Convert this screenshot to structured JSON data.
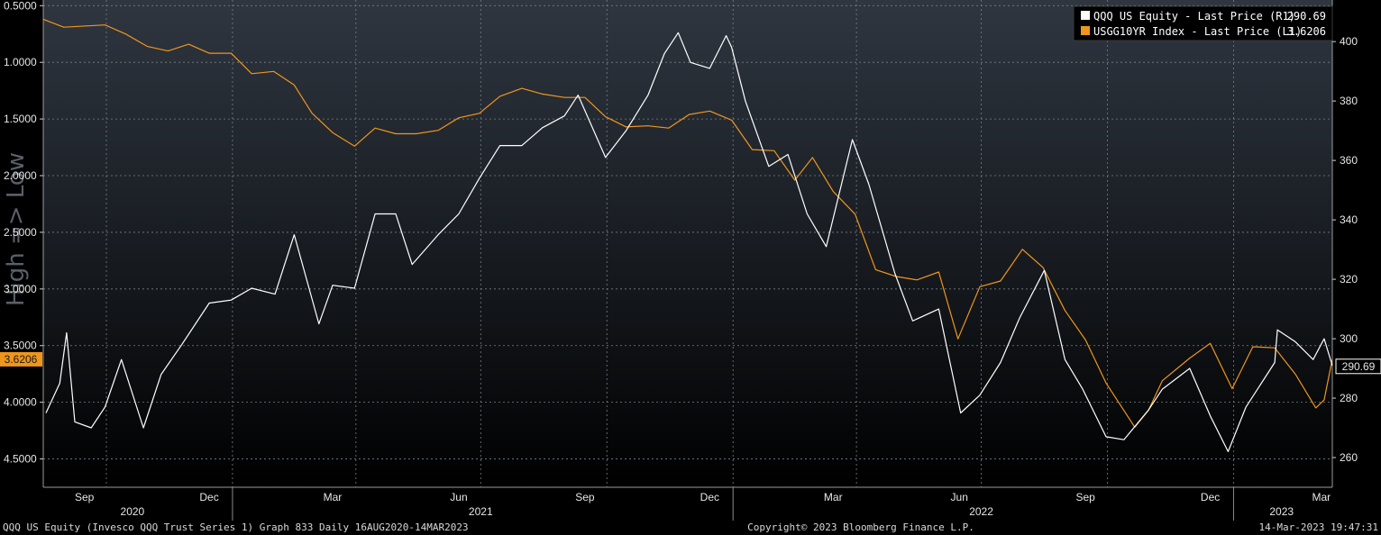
{
  "chart_data": {
    "type": "line",
    "background_label": "High => Low",
    "x_range": [
      "2020-08-16",
      "2023-03-14"
    ],
    "left_axis": {
      "ticks": [
        "0.5000",
        "1.0000",
        "1.5000",
        "2.0000",
        "2.5000",
        "3.0000",
        "3.5000",
        "4.0000",
        "4.5000"
      ],
      "range": [
        0.45,
        4.75
      ],
      "inverted": true
    },
    "right_axis": {
      "ticks": [
        "400",
        "380",
        "360",
        "340",
        "320",
        "300",
        "280",
        "260"
      ],
      "range": [
        250,
        414
      ]
    },
    "month_ticks": [
      "Sep",
      "Dec",
      "Mar",
      "Jun",
      "Sep",
      "Dec",
      "Mar",
      "Jun",
      "Sep",
      "Dec",
      "Mar"
    ],
    "year_labels": [
      "2020",
      "2021",
      "2022",
      "2023"
    ],
    "grid": true,
    "legend_position": "top-right",
    "series": [
      {
        "name": "QQQ US Equity - Last Price (R1)",
        "last_value": "290.69",
        "color": "#ffffff",
        "axis": "right",
        "points": [
          [
            "2020-08-18",
            275
          ],
          [
            "2020-08-28",
            285
          ],
          [
            "2020-09-02",
            302
          ],
          [
            "2020-09-08",
            272
          ],
          [
            "2020-09-20",
            270
          ],
          [
            "2020-09-30",
            277
          ],
          [
            "2020-10-12",
            293
          ],
          [
            "2020-10-28",
            270
          ],
          [
            "2020-11-10",
            288
          ],
          [
            "2020-11-25",
            298
          ],
          [
            "2020-12-15",
            312
          ],
          [
            "2020-12-31",
            313
          ],
          [
            "2021-01-15",
            317
          ],
          [
            "2021-02-01",
            315
          ],
          [
            "2021-02-15",
            335
          ],
          [
            "2021-03-05",
            305
          ],
          [
            "2021-03-15",
            318
          ],
          [
            "2021-03-31",
            317
          ],
          [
            "2021-04-15",
            342
          ],
          [
            "2021-04-30",
            342
          ],
          [
            "2021-05-12",
            325
          ],
          [
            "2021-05-31",
            335
          ],
          [
            "2021-06-15",
            342
          ],
          [
            "2021-06-30",
            354
          ],
          [
            "2021-07-15",
            365
          ],
          [
            "2021-07-31",
            365
          ],
          [
            "2021-08-15",
            371
          ],
          [
            "2021-08-31",
            375
          ],
          [
            "2021-09-10",
            382
          ],
          [
            "2021-09-30",
            361
          ],
          [
            "2021-10-15",
            370
          ],
          [
            "2021-10-31",
            382
          ],
          [
            "2021-11-12",
            396
          ],
          [
            "2021-11-22",
            403
          ],
          [
            "2021-12-01",
            393
          ],
          [
            "2021-12-15",
            391
          ],
          [
            "2021-12-27",
            402
          ],
          [
            "2021-12-31",
            398
          ],
          [
            "2022-01-10",
            380
          ],
          [
            "2022-01-27",
            358
          ],
          [
            "2022-02-10",
            362
          ],
          [
            "2022-02-24",
            342
          ],
          [
            "2022-03-10",
            331
          ],
          [
            "2022-03-29",
            367
          ],
          [
            "2022-04-10",
            352
          ],
          [
            "2022-04-29",
            322
          ],
          [
            "2022-05-12",
            306
          ],
          [
            "2022-05-31",
            310
          ],
          [
            "2022-06-16",
            275
          ],
          [
            "2022-06-30",
            281
          ],
          [
            "2022-07-15",
            292
          ],
          [
            "2022-07-29",
            307
          ],
          [
            "2022-08-16",
            323
          ],
          [
            "2022-08-31",
            293
          ],
          [
            "2022-09-13",
            283
          ],
          [
            "2022-09-30",
            267
          ],
          [
            "2022-10-13",
            266
          ],
          [
            "2022-10-31",
            276
          ],
          [
            "2022-11-10",
            283
          ],
          [
            "2022-11-30",
            290
          ],
          [
            "2022-12-15",
            274
          ],
          [
            "2022-12-28",
            262
          ],
          [
            "2023-01-10",
            277
          ],
          [
            "2023-01-31",
            292
          ],
          [
            "2023-02-02",
            303
          ],
          [
            "2023-02-15",
            299
          ],
          [
            "2023-02-28",
            293
          ],
          [
            "2023-03-08",
            300
          ],
          [
            "2023-03-14",
            291
          ]
        ]
      },
      {
        "name": "USGG10YR Index - Last Price (L1)",
        "last_value": "3.6206",
        "color": "#f0961c",
        "axis": "left",
        "points": [
          [
            "2020-08-16",
            0.62
          ],
          [
            "2020-08-31",
            0.69
          ],
          [
            "2020-09-30",
            0.67
          ],
          [
            "2020-10-15",
            0.75
          ],
          [
            "2020-10-31",
            0.86
          ],
          [
            "2020-11-15",
            0.9
          ],
          [
            "2020-11-30",
            0.84
          ],
          [
            "2020-12-15",
            0.92
          ],
          [
            "2020-12-31",
            0.92
          ],
          [
            "2021-01-15",
            1.1
          ],
          [
            "2021-01-31",
            1.08
          ],
          [
            "2021-02-15",
            1.2
          ],
          [
            "2021-02-28",
            1.45
          ],
          [
            "2021-03-15",
            1.62
          ],
          [
            "2021-03-31",
            1.74
          ],
          [
            "2021-04-15",
            1.58
          ],
          [
            "2021-04-30",
            1.63
          ],
          [
            "2021-05-15",
            1.63
          ],
          [
            "2021-05-31",
            1.6
          ],
          [
            "2021-06-15",
            1.49
          ],
          [
            "2021-06-30",
            1.45
          ],
          [
            "2021-07-15",
            1.3
          ],
          [
            "2021-07-31",
            1.23
          ],
          [
            "2021-08-15",
            1.28
          ],
          [
            "2021-08-31",
            1.31
          ],
          [
            "2021-09-15",
            1.31
          ],
          [
            "2021-09-30",
            1.48
          ],
          [
            "2021-10-15",
            1.57
          ],
          [
            "2021-10-31",
            1.56
          ],
          [
            "2021-11-15",
            1.58
          ],
          [
            "2021-11-30",
            1.46
          ],
          [
            "2021-12-15",
            1.43
          ],
          [
            "2021-12-31",
            1.51
          ],
          [
            "2022-01-15",
            1.77
          ],
          [
            "2022-01-31",
            1.78
          ],
          [
            "2022-02-15",
            2.04
          ],
          [
            "2022-02-28",
            1.84
          ],
          [
            "2022-03-15",
            2.14
          ],
          [
            "2022-03-31",
            2.34
          ],
          [
            "2022-04-15",
            2.83
          ],
          [
            "2022-04-30",
            2.89
          ],
          [
            "2022-05-15",
            2.92
          ],
          [
            "2022-05-31",
            2.85
          ],
          [
            "2022-06-14",
            3.44
          ],
          [
            "2022-06-30",
            2.98
          ],
          [
            "2022-07-15",
            2.93
          ],
          [
            "2022-07-31",
            2.65
          ],
          [
            "2022-08-15",
            2.81
          ],
          [
            "2022-08-31",
            3.19
          ],
          [
            "2022-09-15",
            3.45
          ],
          [
            "2022-09-30",
            3.83
          ],
          [
            "2022-10-21",
            4.22
          ],
          [
            "2022-10-31",
            4.07
          ],
          [
            "2022-11-10",
            3.81
          ],
          [
            "2022-11-30",
            3.61
          ],
          [
            "2022-12-15",
            3.48
          ],
          [
            "2022-12-31",
            3.88
          ],
          [
            "2023-01-15",
            3.51
          ],
          [
            "2023-01-31",
            3.52
          ],
          [
            "2023-02-15",
            3.75
          ],
          [
            "2023-03-02",
            4.05
          ],
          [
            "2023-03-08",
            3.98
          ],
          [
            "2023-03-14",
            3.62
          ]
        ]
      }
    ]
  },
  "footer": {
    "left": "QQQ US Equity (Invesco QQQ Trust Series 1) Graph 833  Daily 16AUG2020-14MAR2023",
    "center": "Copyright© 2023 Bloomberg Finance L.P.",
    "right": "14-Mar-2023 19:47:31"
  }
}
